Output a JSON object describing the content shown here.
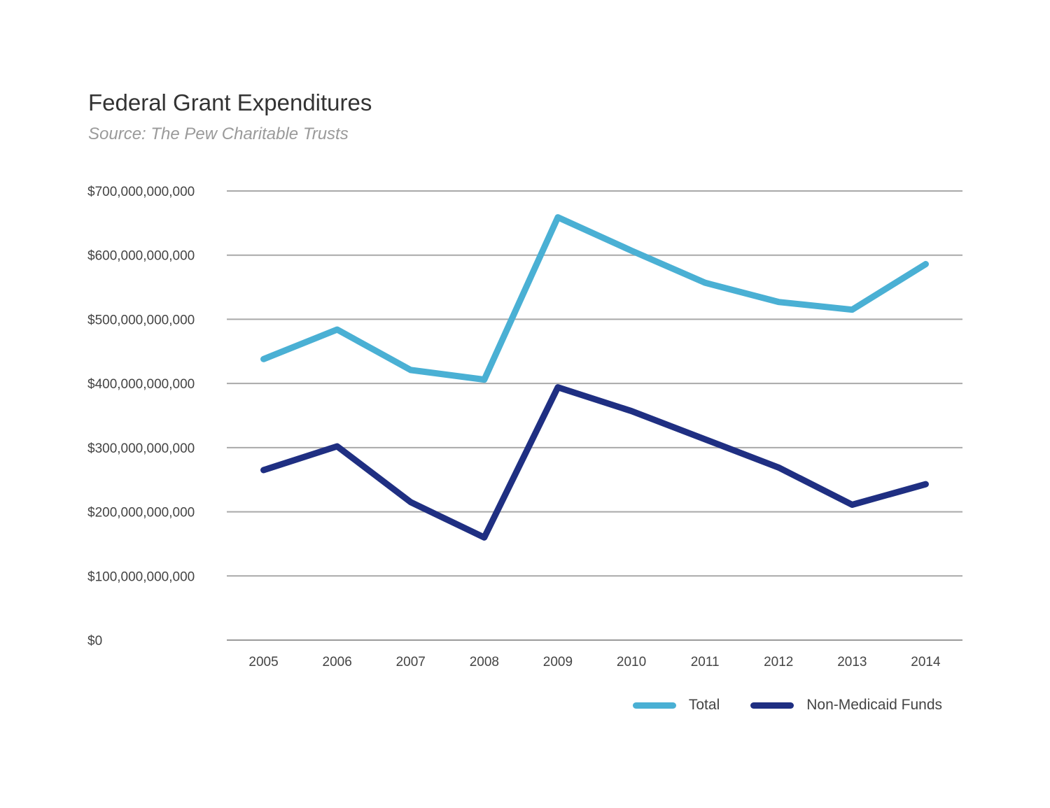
{
  "chart_data": {
    "type": "line",
    "title": "Federal Grant Expenditures",
    "subtitle": "Source: The Pew Charitable Trusts",
    "xlabel": "",
    "ylabel": "",
    "categories": [
      "2005",
      "2006",
      "2007",
      "2008",
      "2009",
      "2010",
      "2011",
      "2012",
      "2013",
      "2014"
    ],
    "ylim": [
      0,
      700000000000
    ],
    "yticks": [
      0,
      100000000000,
      200000000000,
      300000000000,
      400000000000,
      500000000000,
      600000000000,
      700000000000
    ],
    "ytick_labels": [
      "$0",
      "$100,000,000,000",
      "$200,000,000,000",
      "$300,000,000,000",
      "$400,000,000,000",
      "$500,000,000,000",
      "$600,000,000,000",
      "$700,000,000,000"
    ],
    "grid": true,
    "legend_position": "bottom-right",
    "series": [
      {
        "name": "Total",
        "color": "#4ab0d4",
        "values": [
          438000000000,
          484000000000,
          421000000000,
          406000000000,
          659000000000,
          607000000000,
          557000000000,
          527000000000,
          515000000000,
          586000000000
        ]
      },
      {
        "name": "Non-Medicaid Funds",
        "color": "#1f2f82",
        "values": [
          265000000000,
          302000000000,
          215000000000,
          160000000000,
          394000000000,
          357000000000,
          313000000000,
          269000000000,
          211000000000,
          243000000000
        ]
      }
    ]
  },
  "colors": {
    "grid": "#a9a9a9",
    "axis": "#9a9a9a",
    "text": "#444444"
  }
}
